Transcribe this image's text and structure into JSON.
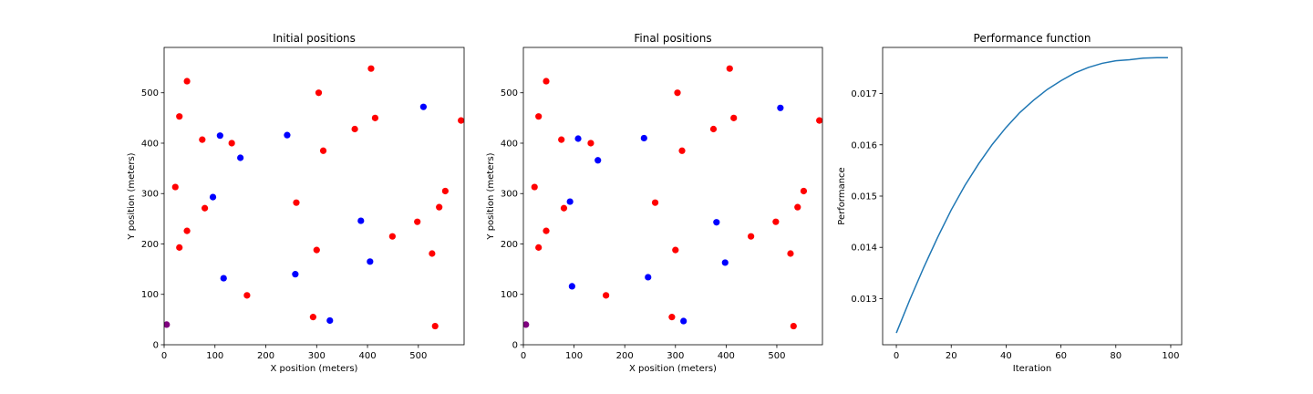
{
  "chart_data": [
    {
      "type": "scatter",
      "title": "Initial positions",
      "xlabel": "X position (meters)",
      "ylabel": "Y position (meters)",
      "xlim": [
        0,
        590
      ],
      "ylim": [
        0,
        590
      ],
      "xticks": [
        0,
        100,
        200,
        300,
        400,
        500
      ],
      "yticks": [
        0,
        100,
        200,
        300,
        400,
        500
      ],
      "grid": false,
      "series": [
        {
          "color": "#ff0000",
          "points": [
            [
              45,
              523
            ],
            [
              30,
              453
            ],
            [
              407,
              548
            ],
            [
              304,
              500
            ],
            [
              415,
              450
            ],
            [
              75,
              407
            ],
            [
              133,
              400
            ],
            [
              375,
              428
            ],
            [
              313,
              385
            ],
            [
              22,
              313
            ],
            [
              553,
              305
            ],
            [
              260,
              282
            ],
            [
              80,
              271
            ],
            [
              541,
              273
            ],
            [
              45,
              226
            ],
            [
              498,
              244
            ],
            [
              30,
              193
            ],
            [
              300,
              188
            ],
            [
              449,
              215
            ],
            [
              527,
              181
            ],
            [
              163,
              98
            ],
            [
              293,
              55
            ],
            [
              533,
              37
            ],
            [
              584,
              445
            ]
          ]
        },
        {
          "color": "#0000ff",
          "points": [
            [
              510,
              472
            ],
            [
              110,
              415
            ],
            [
              242,
              416
            ],
            [
              150,
              371
            ],
            [
              96,
              293
            ],
            [
              387,
              246
            ],
            [
              117,
              132
            ],
            [
              258,
              140
            ],
            [
              405,
              165
            ],
            [
              326,
              48
            ]
          ]
        },
        {
          "color": "#800080",
          "points": [
            [
              5,
              40
            ]
          ]
        }
      ]
    },
    {
      "type": "scatter",
      "title": "Final positions",
      "xlabel": "X position (meters)",
      "ylabel": "Y position (meters)",
      "xlim": [
        0,
        590
      ],
      "ylim": [
        0,
        590
      ],
      "xticks": [
        0,
        100,
        200,
        300,
        400,
        500
      ],
      "yticks": [
        0,
        100,
        200,
        300,
        400,
        500
      ],
      "grid": false,
      "series": [
        {
          "color": "#ff0000",
          "points": [
            [
              45,
              523
            ],
            [
              30,
              453
            ],
            [
              407,
              548
            ],
            [
              304,
              500
            ],
            [
              415,
              450
            ],
            [
              75,
              407
            ],
            [
              133,
              400
            ],
            [
              375,
              428
            ],
            [
              313,
              385
            ],
            [
              22,
              313
            ],
            [
              553,
              305
            ],
            [
              260,
              282
            ],
            [
              80,
              271
            ],
            [
              541,
              273
            ],
            [
              45,
              226
            ],
            [
              498,
              244
            ],
            [
              30,
              193
            ],
            [
              300,
              188
            ],
            [
              449,
              215
            ],
            [
              527,
              181
            ],
            [
              163,
              98
            ],
            [
              293,
              55
            ],
            [
              533,
              37
            ],
            [
              584,
              445
            ]
          ]
        },
        {
          "color": "#0000ff",
          "points": [
            [
              507,
              470
            ],
            [
              108,
              409
            ],
            [
              238,
              410
            ],
            [
              147,
              366
            ],
            [
              92,
              284
            ],
            [
              381,
              243
            ],
            [
              96,
              116
            ],
            [
              246,
              134
            ],
            [
              398,
              163
            ],
            [
              316,
              47
            ]
          ]
        },
        {
          "color": "#800080",
          "points": [
            [
              5,
              40
            ]
          ]
        }
      ]
    },
    {
      "type": "line",
      "title": "Performance function",
      "xlabel": "Iteration",
      "ylabel": "Performance",
      "xlim": [
        -5,
        104
      ],
      "ylim": [
        0.0121,
        0.0179
      ],
      "xticks": [
        0,
        20,
        40,
        60,
        80,
        100
      ],
      "yticks": [
        0.013,
        0.014,
        0.015,
        0.016,
        0.017
      ],
      "grid": false,
      "series": [
        {
          "color": "#1f77b4",
          "x": [
            0,
            5,
            10,
            15,
            20,
            25,
            30,
            35,
            40,
            45,
            50,
            55,
            60,
            65,
            70,
            75,
            80,
            85,
            90,
            95,
            99
          ],
          "y": [
            0.01233,
            0.01299,
            0.01361,
            0.01419,
            0.01473,
            0.01521,
            0.01563,
            0.01601,
            0.01634,
            0.01663,
            0.01687,
            0.01708,
            0.01725,
            0.0174,
            0.01751,
            0.01759,
            0.01764,
            0.01766,
            0.01769,
            0.0177,
            0.0177
          ]
        }
      ]
    }
  ]
}
